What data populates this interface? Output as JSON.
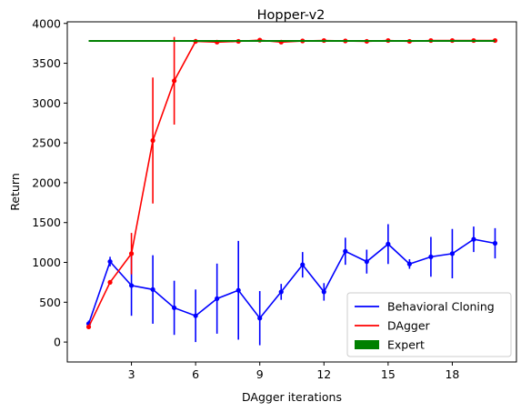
{
  "chart_data": {
    "type": "line",
    "title": "Hopper-v2",
    "xlabel": "DAgger iterations",
    "ylabel": "Return",
    "xlim": [
      0.0,
      21.0
    ],
    "ylim": [
      -250,
      4020
    ],
    "x_ticks": [
      3,
      6,
      9,
      12,
      15,
      18
    ],
    "y_ticks": [
      0,
      500,
      1000,
      1500,
      2000,
      2500,
      3000,
      3500,
      4000
    ],
    "legend_position": "lower-right",
    "grid": false,
    "series": [
      {
        "name": "Behavioral Cloning",
        "color": "#0000ff",
        "x": [
          1,
          2,
          3,
          4,
          5,
          6,
          7,
          8,
          9,
          10,
          11,
          12,
          13,
          14,
          15,
          16,
          17,
          18,
          19,
          20
        ],
        "y": [
          230,
          1010,
          710,
          660,
          430,
          330,
          545,
          650,
          300,
          630,
          970,
          630,
          1140,
          1010,
          1230,
          980,
          1070,
          1110,
          1290,
          1240
        ],
        "err": [
          40,
          60,
          380,
          430,
          340,
          330,
          440,
          620,
          340,
          100,
          160,
          110,
          170,
          150,
          250,
          60,
          250,
          310,
          160,
          190
        ]
      },
      {
        "name": "DAgger",
        "color": "#ff0000",
        "x": [
          1,
          2,
          3,
          4,
          5,
          6,
          7,
          8,
          9,
          10,
          11,
          12,
          13,
          14,
          15,
          16,
          17,
          18,
          19,
          20
        ],
        "y": [
          190,
          750,
          1110,
          2530,
          3280,
          3775,
          3765,
          3775,
          3790,
          3765,
          3780,
          3785,
          3780,
          3775,
          3785,
          3775,
          3785,
          3785,
          3785,
          3785
        ],
        "err": [
          20,
          10,
          260,
          790,
          550,
          30,
          25,
          15,
          15,
          20,
          15,
          10,
          10,
          15,
          10,
          10,
          10,
          10,
          10,
          10
        ]
      },
      {
        "name": "Expert",
        "color": "#008000",
        "x": [
          1,
          20
        ],
        "y": [
          3780,
          3780
        ],
        "legend_style": "patch"
      }
    ]
  }
}
